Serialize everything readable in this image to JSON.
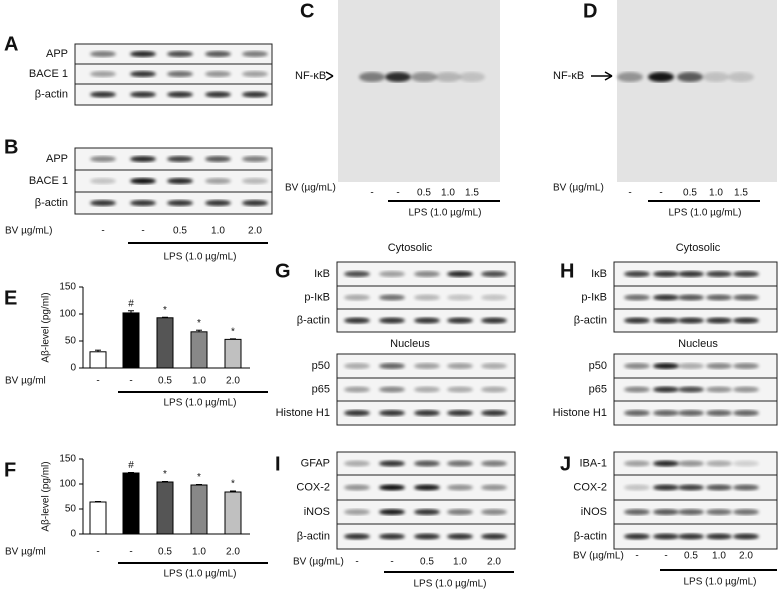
{
  "chart_data": [
    {
      "type": "bar",
      "panel": "E",
      "ylabel": "Aβ-level  (pg/ml)",
      "categories": [
        "-",
        "-",
        "0.5",
        "1.0",
        "2.0"
      ],
      "values": [
        30,
        102,
        93,
        67,
        53
      ],
      "errors": [
        3,
        4,
        1,
        3,
        1
      ],
      "colors": [
        "#ffffff",
        "#000000",
        "#555555",
        "#888888",
        "#c0c0c0"
      ],
      "marks": [
        null,
        "#",
        "*",
        "*",
        "*"
      ],
      "ylim": [
        0,
        150
      ],
      "yticks": [
        0,
        50,
        100,
        150
      ],
      "xlabel": "BV µg/ml",
      "group_label": "LPS (1.0 µg/mL)"
    },
    {
      "type": "bar",
      "panel": "F",
      "ylabel": "Aβ-level  (pg/ml)",
      "categories": [
        "-",
        "-",
        "0.5",
        "1.0",
        "2.0"
      ],
      "values": [
        64,
        122,
        104,
        98,
        84
      ],
      "errors": [
        1,
        1,
        1,
        1,
        2
      ],
      "colors": [
        "#ffffff",
        "#000000",
        "#555555",
        "#888888",
        "#c0c0c0"
      ],
      "marks": [
        null,
        "#",
        "*",
        "*",
        "*"
      ],
      "ylim": [
        0,
        150
      ],
      "yticks": [
        0,
        50,
        100,
        150
      ],
      "xlabel": "BV µg/ml",
      "group_label": "LPS (1.0 µg/mL)"
    }
  ],
  "blots": {
    "A": {
      "label": "A",
      "rows": [
        "APP",
        "BACE 1",
        "β-actin"
      ]
    },
    "B": {
      "label": "B",
      "rows": [
        "APP",
        "BACE 1",
        "β-actin"
      ],
      "treatment": "BV µg/mL)",
      "doses": [
        "-",
        "-",
        "0.5",
        "1.0",
        "2.0"
      ],
      "group_label": "LPS (1.0 µg/mL)"
    },
    "C": {
      "label": "C",
      "marker": "NF-κB",
      "treatment": "BV (µg/mL)",
      "doses": [
        "-",
        "-",
        "0.5",
        "1.0",
        "1.5"
      ],
      "group_label": "LPS (1.0 µg/mL)"
    },
    "D": {
      "label": "D",
      "marker": "NF-κB",
      "treatment": "BV (µg/mL)",
      "doses": [
        "-",
        "-",
        "0.5",
        "1.0",
        "1.5"
      ],
      "group_label": "LPS (1.0 µg/mL)"
    },
    "G": {
      "label": "G",
      "top_title": "Cytosolic",
      "top_rows": [
        "IκB",
        "p-IκB",
        "β-actin"
      ],
      "bottom_title": "Nucleus",
      "bottom_rows": [
        "p50",
        "p65",
        "Histone H1"
      ]
    },
    "H": {
      "label": "H",
      "top_title": "Cytosolic",
      "top_rows": [
        "IκB",
        "p-IκB",
        "β-actin"
      ],
      "bottom_title": "Nucleus",
      "bottom_rows": [
        "p50",
        "p65",
        "Histone H1"
      ]
    },
    "I": {
      "label": "I",
      "rows": [
        "GFAP",
        "COX-2",
        "iNOS",
        "β-actin"
      ],
      "treatment": "BV (µg/mL)",
      "doses": [
        "-",
        "-",
        "0.5",
        "1.0",
        "2.0"
      ],
      "group_label": "LPS (1.0 µg/mL)"
    },
    "J": {
      "label": "J",
      "rows": [
        "IBA-1",
        "COX-2",
        "iNOS",
        "β-actin"
      ],
      "treatment": "BV (µg/mL)",
      "doses": [
        "-",
        "-",
        "0.5",
        "1.0",
        "2.0"
      ],
      "group_label": "LPS (1.0 µg/mL)"
    }
  }
}
